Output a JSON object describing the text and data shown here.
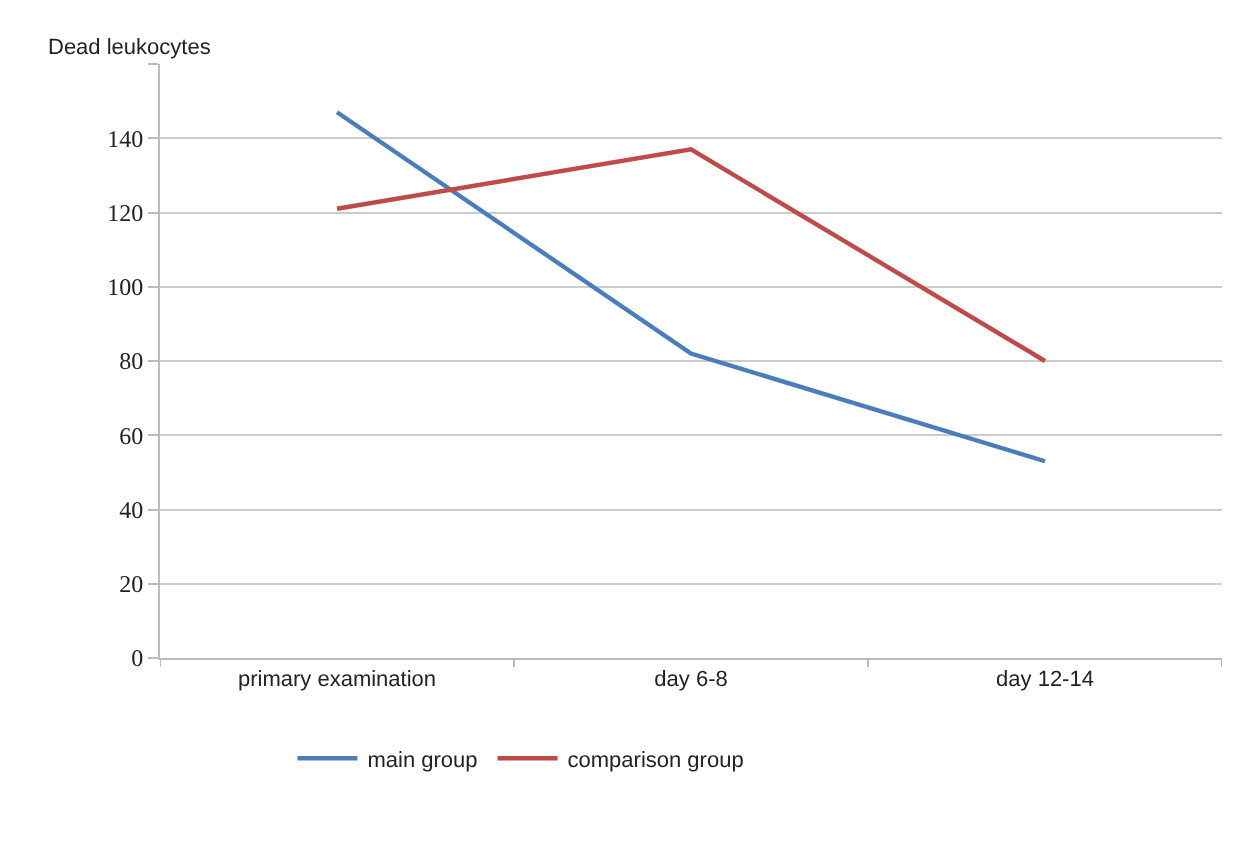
{
  "chart_data": {
    "type": "line",
    "ylabel": "Dead leukocytes",
    "categories": [
      "primary examination",
      "day 6-8",
      "day 12-14"
    ],
    "series": [
      {
        "name": "main group",
        "color": "#4a7ebb",
        "values": [
          147,
          82,
          53
        ]
      },
      {
        "name": "comparison group",
        "color": "#be4b48",
        "values": [
          121,
          137,
          80
        ]
      }
    ],
    "ylim": [
      0,
      160
    ],
    "yticks": [
      0,
      20,
      40,
      60,
      80,
      100,
      120,
      140,
      {
        "value": 160,
        "label": null
      }
    ],
    "grid": "y",
    "legend": "bottom",
    "marker": "none",
    "line_style": "solid"
  }
}
